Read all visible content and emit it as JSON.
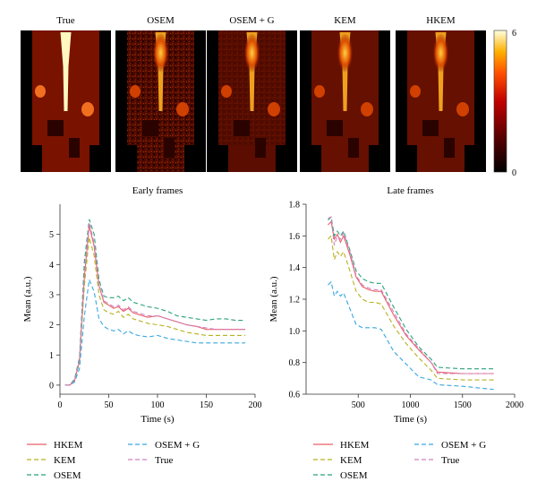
{
  "images": {
    "titles": [
      "True",
      "OSEM",
      "OSEM + G",
      "KEM",
      "HKEM"
    ],
    "colorbar": {
      "max_label": "6",
      "min_label": "0"
    }
  },
  "colors": {
    "HKEM": "#e8606a",
    "KEM": "#b8b020",
    "OSEM": "#2aa07a",
    "OSEM + G": "#38a8e0",
    "True": "#d080c0"
  },
  "chart_data": [
    {
      "type": "line",
      "title": "Early frames",
      "xlabel": "Time (s)",
      "ylabel": "Mean (a.u.)",
      "xlim": [
        0,
        200
      ],
      "ylim": [
        -0.3,
        6
      ],
      "xticks": [
        0,
        50,
        100,
        150,
        200
      ],
      "yticks": [
        0,
        1,
        2,
        3,
        4,
        5
      ],
      "x": [
        5,
        10,
        15,
        20,
        25,
        30,
        35,
        40,
        45,
        50,
        55,
        60,
        65,
        70,
        75,
        80,
        90,
        100,
        110,
        120,
        130,
        140,
        150,
        160,
        170,
        180,
        190
      ],
      "series": [
        {
          "name": "HKEM",
          "style": "solid",
          "values": [
            0,
            0,
            0.15,
            0.8,
            3.6,
            5.3,
            4.6,
            3.3,
            2.75,
            2.65,
            2.55,
            2.6,
            2.45,
            2.55,
            2.4,
            2.35,
            2.25,
            2.3,
            2.2,
            2.1,
            2.0,
            1.95,
            1.85,
            1.85,
            1.85,
            1.85,
            1.85
          ]
        },
        {
          "name": "KEM",
          "style": "dashed",
          "values": [
            0,
            0,
            0.15,
            0.75,
            3.3,
            4.9,
            4.3,
            3.0,
            2.5,
            2.4,
            2.35,
            2.45,
            2.25,
            2.35,
            2.2,
            2.15,
            2.05,
            2.0,
            1.95,
            1.85,
            1.75,
            1.7,
            1.65,
            1.65,
            1.65,
            1.65,
            1.65
          ]
        },
        {
          "name": "OSEM",
          "style": "dashed",
          "values": [
            0,
            0,
            0.2,
            0.9,
            4.1,
            5.5,
            5.0,
            3.5,
            2.95,
            2.9,
            2.9,
            2.95,
            2.8,
            2.9,
            2.75,
            2.7,
            2.6,
            2.55,
            2.45,
            2.3,
            2.25,
            2.2,
            2.15,
            2.2,
            2.2,
            2.15,
            2.15
          ]
        },
        {
          "name": "OSEM + G",
          "style": "dashed",
          "values": [
            0,
            0,
            0.1,
            0.55,
            2.3,
            3.5,
            3.1,
            2.2,
            1.95,
            1.85,
            1.8,
            1.85,
            1.7,
            1.8,
            1.7,
            1.65,
            1.6,
            1.65,
            1.55,
            1.5,
            1.45,
            1.4,
            1.4,
            1.4,
            1.4,
            1.4,
            1.4
          ]
        },
        {
          "name": "True",
          "style": "dashed",
          "values": [
            0,
            0,
            0.15,
            0.8,
            3.7,
            5.4,
            4.7,
            3.35,
            2.8,
            2.7,
            2.6,
            2.65,
            2.5,
            2.6,
            2.45,
            2.4,
            2.3,
            2.3,
            2.2,
            2.1,
            2.0,
            1.95,
            1.9,
            1.85,
            1.85,
            1.85,
            1.85
          ]
        }
      ]
    },
    {
      "type": "line",
      "title": "Late frames",
      "xlabel": "Time (s)",
      "ylabel": "Mean (a.u.)",
      "xlim": [
        0,
        2000
      ],
      "ylim": [
        0.6,
        1.8
      ],
      "xticks": [
        500,
        1000,
        1500,
        2000
      ],
      "yticks": [
        0.6,
        0.8,
        1.0,
        1.2,
        1.4,
        1.6,
        1.8
      ],
      "x": [
        210,
        240,
        270,
        300,
        330,
        360,
        420,
        480,
        540,
        600,
        660,
        720,
        840,
        960,
        1080,
        1200,
        1260,
        1500,
        1800
      ],
      "series": [
        {
          "name": "HKEM",
          "style": "solid",
          "values": [
            1.67,
            1.69,
            1.58,
            1.61,
            1.56,
            1.6,
            1.48,
            1.34,
            1.28,
            1.26,
            1.25,
            1.25,
            1.1,
            0.97,
            0.88,
            0.8,
            0.74,
            0.73,
            0.73
          ]
        },
        {
          "name": "KEM",
          "style": "dashed",
          "values": [
            1.58,
            1.6,
            1.45,
            1.5,
            1.47,
            1.5,
            1.38,
            1.25,
            1.2,
            1.18,
            1.18,
            1.17,
            1.03,
            0.92,
            0.83,
            0.75,
            0.7,
            0.69,
            0.69
          ]
        },
        {
          "name": "OSEM",
          "style": "dashed",
          "values": [
            1.7,
            1.72,
            1.6,
            1.63,
            1.6,
            1.63,
            1.51,
            1.38,
            1.33,
            1.31,
            1.3,
            1.3,
            1.15,
            1.01,
            0.9,
            0.82,
            0.77,
            0.76,
            0.76
          ]
        },
        {
          "name": "OSEM + G",
          "style": "dashed",
          "values": [
            1.29,
            1.31,
            1.22,
            1.25,
            1.22,
            1.24,
            1.14,
            1.04,
            1.02,
            1.02,
            1.02,
            1.01,
            0.87,
            0.79,
            0.71,
            0.69,
            0.66,
            0.65,
            0.63
          ]
        },
        {
          "name": "True",
          "style": "dashed",
          "values": [
            1.71,
            1.72,
            1.54,
            1.6,
            1.58,
            1.62,
            1.5,
            1.35,
            1.29,
            1.27,
            1.26,
            1.26,
            1.12,
            0.98,
            0.89,
            0.8,
            0.73,
            0.73,
            0.73
          ]
        }
      ]
    }
  ],
  "legend": {
    "placement": "below",
    "entries": [
      "HKEM",
      "KEM",
      "OSEM",
      "OSEM + G",
      "True"
    ]
  }
}
